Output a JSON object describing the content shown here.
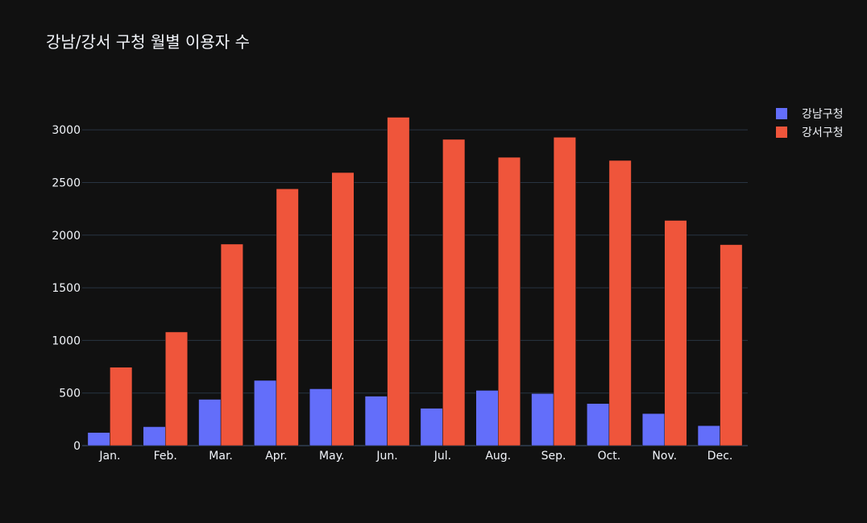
{
  "chart_data": {
    "type": "bar",
    "title": "강남/강서 구청 월별 이용자 수",
    "categories": [
      "Jan.",
      "Feb.",
      "Mar.",
      "Apr.",
      "May.",
      "Jun.",
      "Jul.",
      "Aug.",
      "Sep.",
      "Oct.",
      "Nov.",
      "Dec."
    ],
    "series": [
      {
        "name": "강남구청",
        "color": "#636efa",
        "values": [
          125,
          180,
          440,
          620,
          540,
          470,
          355,
          525,
          495,
          400,
          305,
          190
        ]
      },
      {
        "name": "강서구청",
        "color": "#ef553b",
        "values": [
          745,
          1080,
          1915,
          2440,
          2595,
          3120,
          2910,
          2740,
          2930,
          2710,
          2140,
          1910
        ]
      }
    ],
    "ylim": [
      0,
      3300
    ],
    "yticks": [
      0,
      500,
      1000,
      1500,
      2000,
      2500,
      3000
    ],
    "grid": true,
    "legend_position": "top-right",
    "colors": {
      "background": "#111111",
      "grid": "#283442",
      "text": "#f2f5fa"
    }
  }
}
